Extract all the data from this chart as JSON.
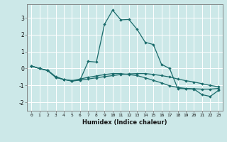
{
  "xlabel": "Humidex (Indice chaleur)",
  "bg_color": "#cce8e8",
  "grid_color": "#ffffff",
  "line_color": "#1a6b6b",
  "xlim": [
    -0.5,
    23.5
  ],
  "ylim": [
    -2.5,
    3.8
  ],
  "xticks": [
    0,
    1,
    2,
    3,
    4,
    5,
    6,
    7,
    8,
    9,
    10,
    11,
    12,
    13,
    14,
    15,
    16,
    17,
    18,
    19,
    20,
    21,
    22,
    23
  ],
  "yticks": [
    -2,
    -1,
    0,
    1,
    2,
    3
  ],
  "series1_x": [
    0,
    1,
    2,
    3,
    4,
    5,
    6,
    7,
    8,
    9,
    10,
    11,
    12,
    13,
    14,
    15,
    16,
    17,
    18,
    19,
    20,
    21,
    22,
    23
  ],
  "series1_y": [
    0.15,
    0.0,
    -0.12,
    -0.52,
    -0.65,
    -0.75,
    -0.68,
    -0.62,
    -0.55,
    -0.48,
    -0.42,
    -0.36,
    -0.32,
    -0.3,
    -0.3,
    -0.35,
    -0.42,
    -0.5,
    -0.62,
    -0.72,
    -0.8,
    -0.9,
    -1.0,
    -1.08
  ],
  "series2_x": [
    0,
    1,
    2,
    3,
    4,
    5,
    6,
    7,
    8,
    9,
    10,
    11,
    12,
    13,
    14,
    15,
    16,
    17,
    18,
    19,
    20,
    21,
    22,
    23
  ],
  "series2_y": [
    0.15,
    0.0,
    -0.1,
    -0.48,
    -0.65,
    -0.72,
    -0.68,
    0.42,
    0.38,
    2.62,
    3.45,
    2.88,
    2.9,
    2.32,
    1.55,
    1.42,
    0.25,
    0.0,
    -1.18,
    -1.2,
    -1.22,
    -1.55,
    -1.65,
    -1.3
  ],
  "series3_x": [
    0,
    1,
    2,
    3,
    4,
    5,
    6,
    7,
    8,
    9,
    10,
    11,
    12,
    13,
    14,
    15,
    16,
    17,
    18,
    19,
    20,
    21,
    22,
    23
  ],
  "series3_y": [
    0.15,
    0.0,
    -0.12,
    -0.52,
    -0.65,
    -0.72,
    -0.62,
    -0.52,
    -0.44,
    -0.36,
    -0.3,
    -0.3,
    -0.36,
    -0.42,
    -0.55,
    -0.7,
    -0.85,
    -1.02,
    -1.12,
    -1.18,
    -1.2,
    -1.22,
    -1.22,
    -1.18
  ]
}
